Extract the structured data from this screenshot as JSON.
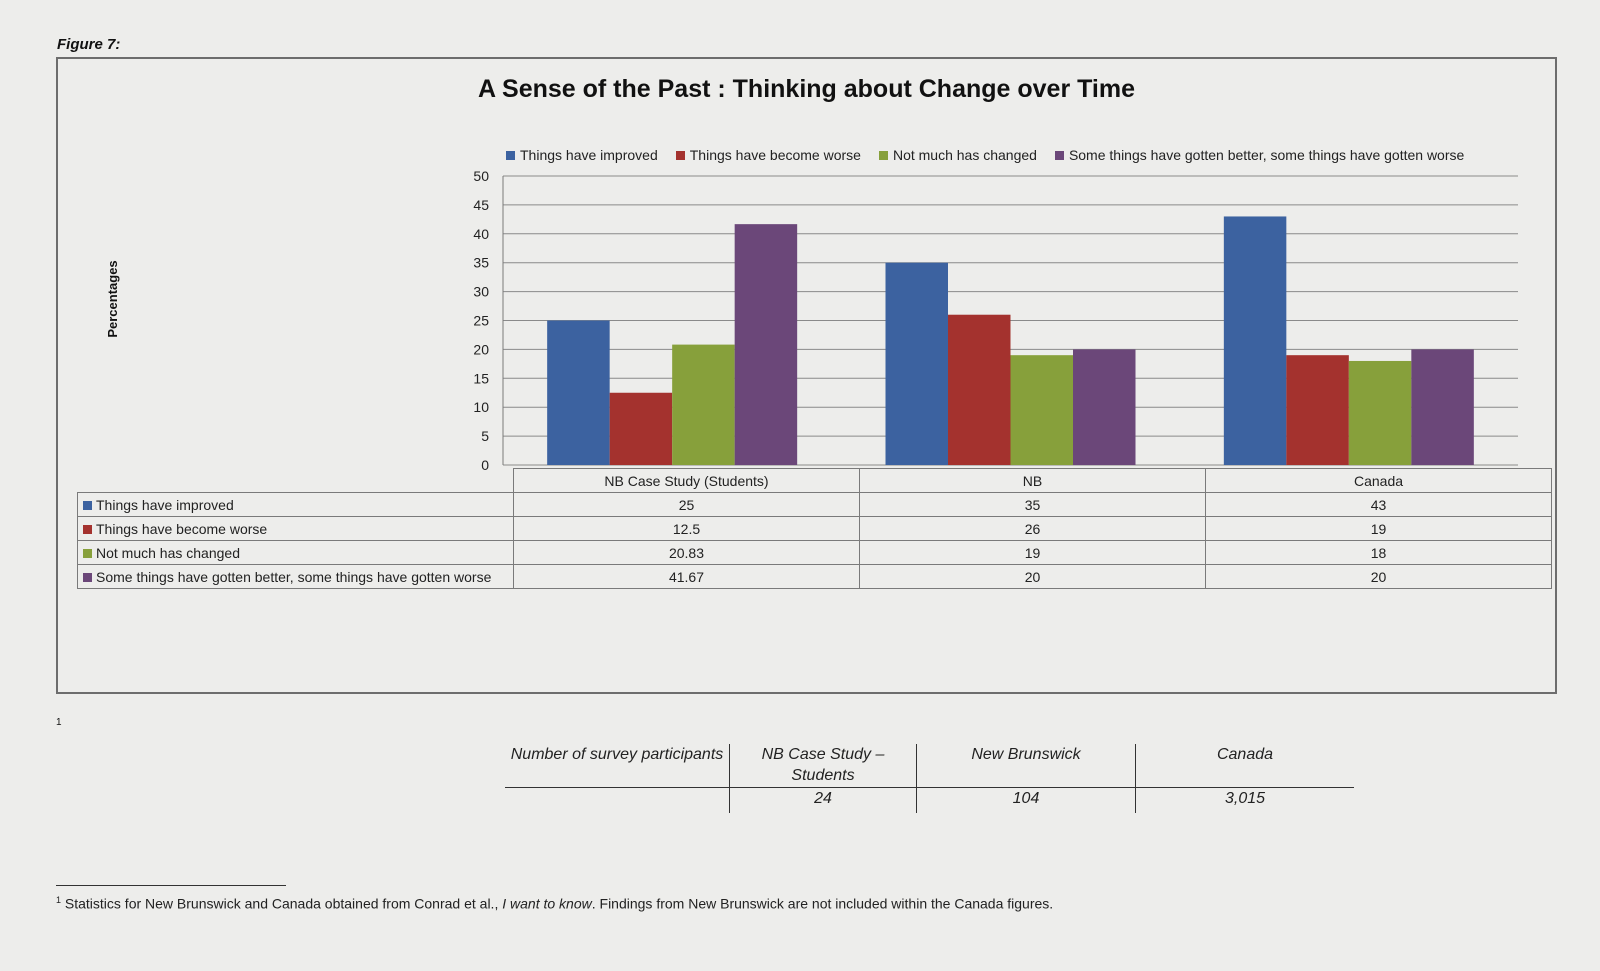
{
  "figure_label": "Figure 7:",
  "colors": {
    "improved": "#3c62a0",
    "worse": "#a4322e",
    "no_change": "#87a03b",
    "mixed": "#6b4779"
  },
  "chart_data": {
    "type": "bar",
    "title": "A Sense of the Past : Thinking about Change over Time",
    "ylabel": "Percentages",
    "xlabel": "",
    "ylim": [
      0,
      50
    ],
    "yticks": [
      "0",
      "5",
      "10",
      "15",
      "20",
      "25",
      "30",
      "35",
      "40",
      "45",
      "50"
    ],
    "grid": true,
    "legend_position": "top",
    "categories": [
      "NB Case Study (Students)",
      "NB",
      "Canada"
    ],
    "series": [
      {
        "name": "Things have improved",
        "color_key": "improved",
        "values": [
          25,
          35,
          43
        ],
        "labels": [
          "25",
          "35",
          "43"
        ]
      },
      {
        "name": "Things have become worse",
        "color_key": "worse",
        "values": [
          12.5,
          26,
          19
        ],
        "labels": [
          "12.5",
          "26",
          "19"
        ]
      },
      {
        "name": "Not much has changed",
        "color_key": "no_change",
        "values": [
          20.83,
          19,
          18
        ],
        "labels": [
          "20.83",
          "19",
          "18"
        ]
      },
      {
        "name": "Some things have gotten better, some things have gotten worse",
        "color_key": "mixed",
        "values": [
          41.67,
          20,
          20
        ],
        "labels": [
          "41.67",
          "20",
          "20"
        ]
      }
    ]
  },
  "footnote_marker": "1",
  "participants_table": {
    "headers": [
      "Number of survey participants",
      "NB Case Study – Students",
      "New Brunswick",
      "Canada"
    ],
    "values": [
      "",
      "24",
      "104",
      "3,015"
    ]
  },
  "footnote": {
    "marker": "1",
    "text_before": " Statistics for New Brunswick and Canada obtained from Conrad et al., ",
    "text_italic": "I want to know",
    "text_after": ". Findings from New Brunswick are not included within the Canada figures."
  }
}
